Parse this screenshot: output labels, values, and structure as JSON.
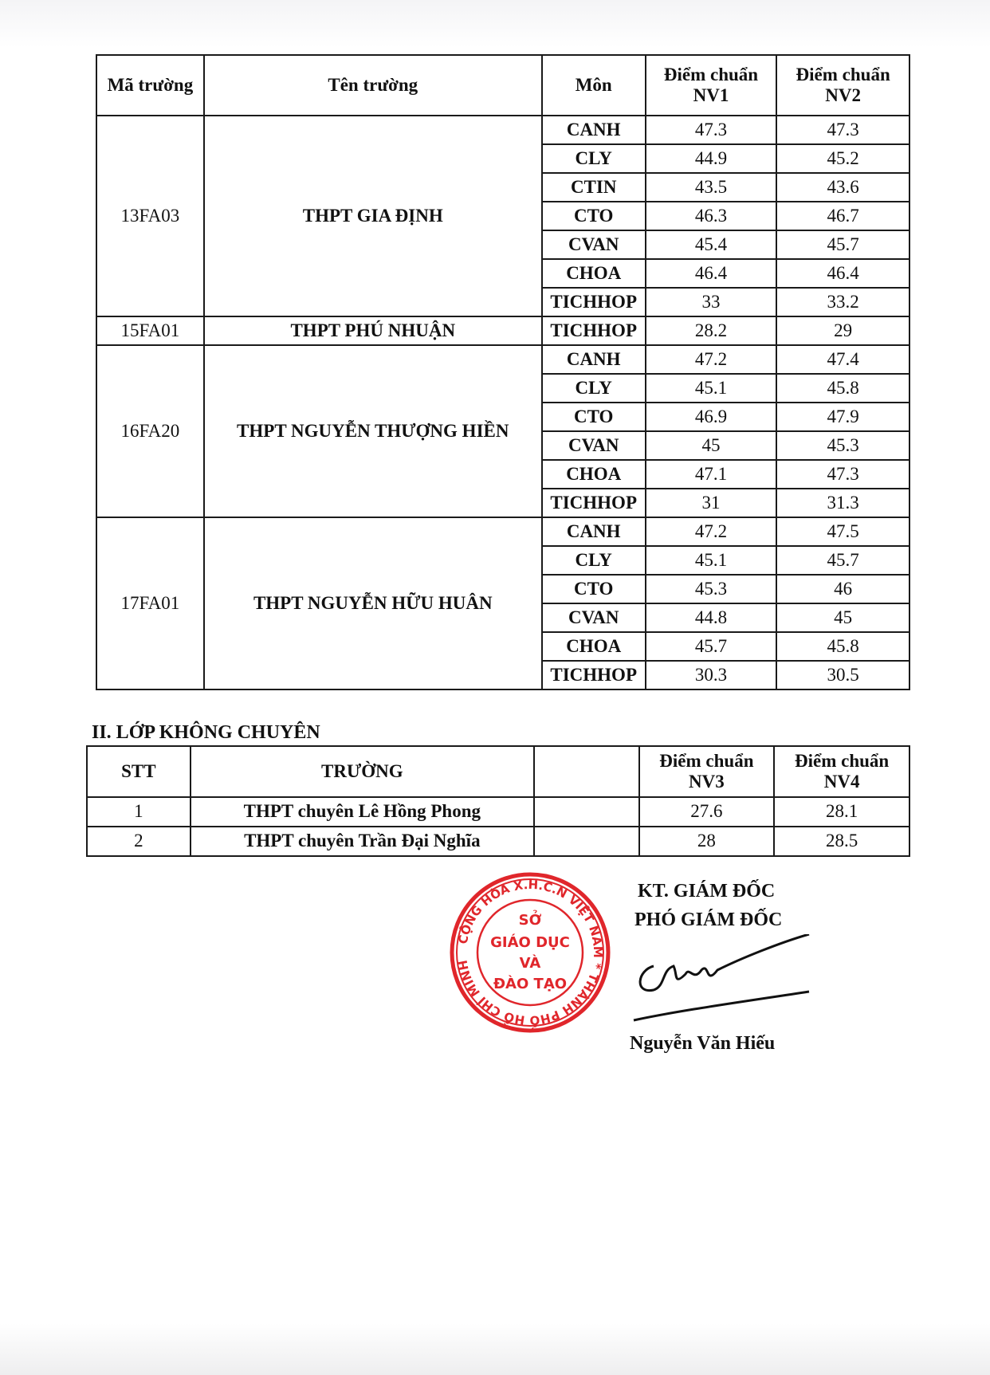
{
  "table1": {
    "headers": [
      "Mã trường",
      "Tên trường",
      "Môn",
      "Điểm chuẩn NV1",
      "Điểm chuẩn NV2"
    ],
    "schools": [
      {
        "code": "13FA03",
        "name": "THPT GIA ĐỊNH",
        "rows": [
          {
            "subject": "CANH",
            "nv1": "47.3",
            "nv2": "47.3"
          },
          {
            "subject": "CLY",
            "nv1": "44.9",
            "nv2": "45.2"
          },
          {
            "subject": "CTIN",
            "nv1": "43.5",
            "nv2": "43.6"
          },
          {
            "subject": "CTO",
            "nv1": "46.3",
            "nv2": "46.7"
          },
          {
            "subject": "CVAN",
            "nv1": "45.4",
            "nv2": "45.7"
          },
          {
            "subject": "CHOA",
            "nv1": "46.4",
            "nv2": "46.4"
          },
          {
            "subject": "TICHHOP",
            "nv1": "33",
            "nv2": "33.2"
          }
        ]
      },
      {
        "code": "15FA01",
        "name": "THPT PHÚ NHUẬN",
        "rows": [
          {
            "subject": "TICHHOP",
            "nv1": "28.2",
            "nv2": "29"
          }
        ]
      },
      {
        "code": "16FA20",
        "name": "THPT NGUYỄN THƯỢNG HIỀN",
        "rows": [
          {
            "subject": "CANH",
            "nv1": "47.2",
            "nv2": "47.4"
          },
          {
            "subject": "CLY",
            "nv1": "45.1",
            "nv2": "45.8"
          },
          {
            "subject": "CTO",
            "nv1": "46.9",
            "nv2": "47.9"
          },
          {
            "subject": "CVAN",
            "nv1": "45",
            "nv2": "45.3"
          },
          {
            "subject": "CHOA",
            "nv1": "47.1",
            "nv2": "47.3"
          },
          {
            "subject": "TICHHOP",
            "nv1": "31",
            "nv2": "31.3"
          }
        ]
      },
      {
        "code": "17FA01",
        "name": "THPT NGUYỄN HỮU HUÂN",
        "rows": [
          {
            "subject": "CANH",
            "nv1": "47.2",
            "nv2": "47.5"
          },
          {
            "subject": "CLY",
            "nv1": "45.1",
            "nv2": "45.7"
          },
          {
            "subject": "CTO",
            "nv1": "45.3",
            "nv2": "46"
          },
          {
            "subject": "CVAN",
            "nv1": "44.8",
            "nv2": "45"
          },
          {
            "subject": "CHOA",
            "nv1": "45.7",
            "nv2": "45.8"
          },
          {
            "subject": "TICHHOP",
            "nv1": "30.3",
            "nv2": "30.5"
          }
        ]
      }
    ]
  },
  "section2": {
    "title": "II. LỚP KHÔNG CHUYÊN",
    "headers": [
      "STT",
      "TRƯỜNG",
      "",
      "Điểm chuẩn NV3",
      "Điểm chuẩn NV4"
    ],
    "rows": [
      {
        "stt": "1",
        "name": "THPT chuyên Lê Hồng Phong",
        "blank": "",
        "nv3": "27.6",
        "nv4": "28.1"
      },
      {
        "stt": "2",
        "name": "THPT chuyên Trần Đại Nghĩa",
        "blank": "",
        "nv3": "28",
        "nv4": "28.5"
      }
    ]
  },
  "signature": {
    "line1": "KT. GIÁM ĐỐC",
    "line2": "PHÓ GIÁM ĐỐC",
    "signer": "Nguyễn Văn Hiếu"
  },
  "stamp": {
    "outer_text": "CỘNG HÒA X.H.C.N VIỆT NAM * THÀNH PHỐ HỒ CHÍ MINH *",
    "inner_lines": [
      "SỞ",
      "GIÁO DỤC",
      "VÀ",
      "ĐÀO TẠO"
    ],
    "color": "#e0262b"
  }
}
